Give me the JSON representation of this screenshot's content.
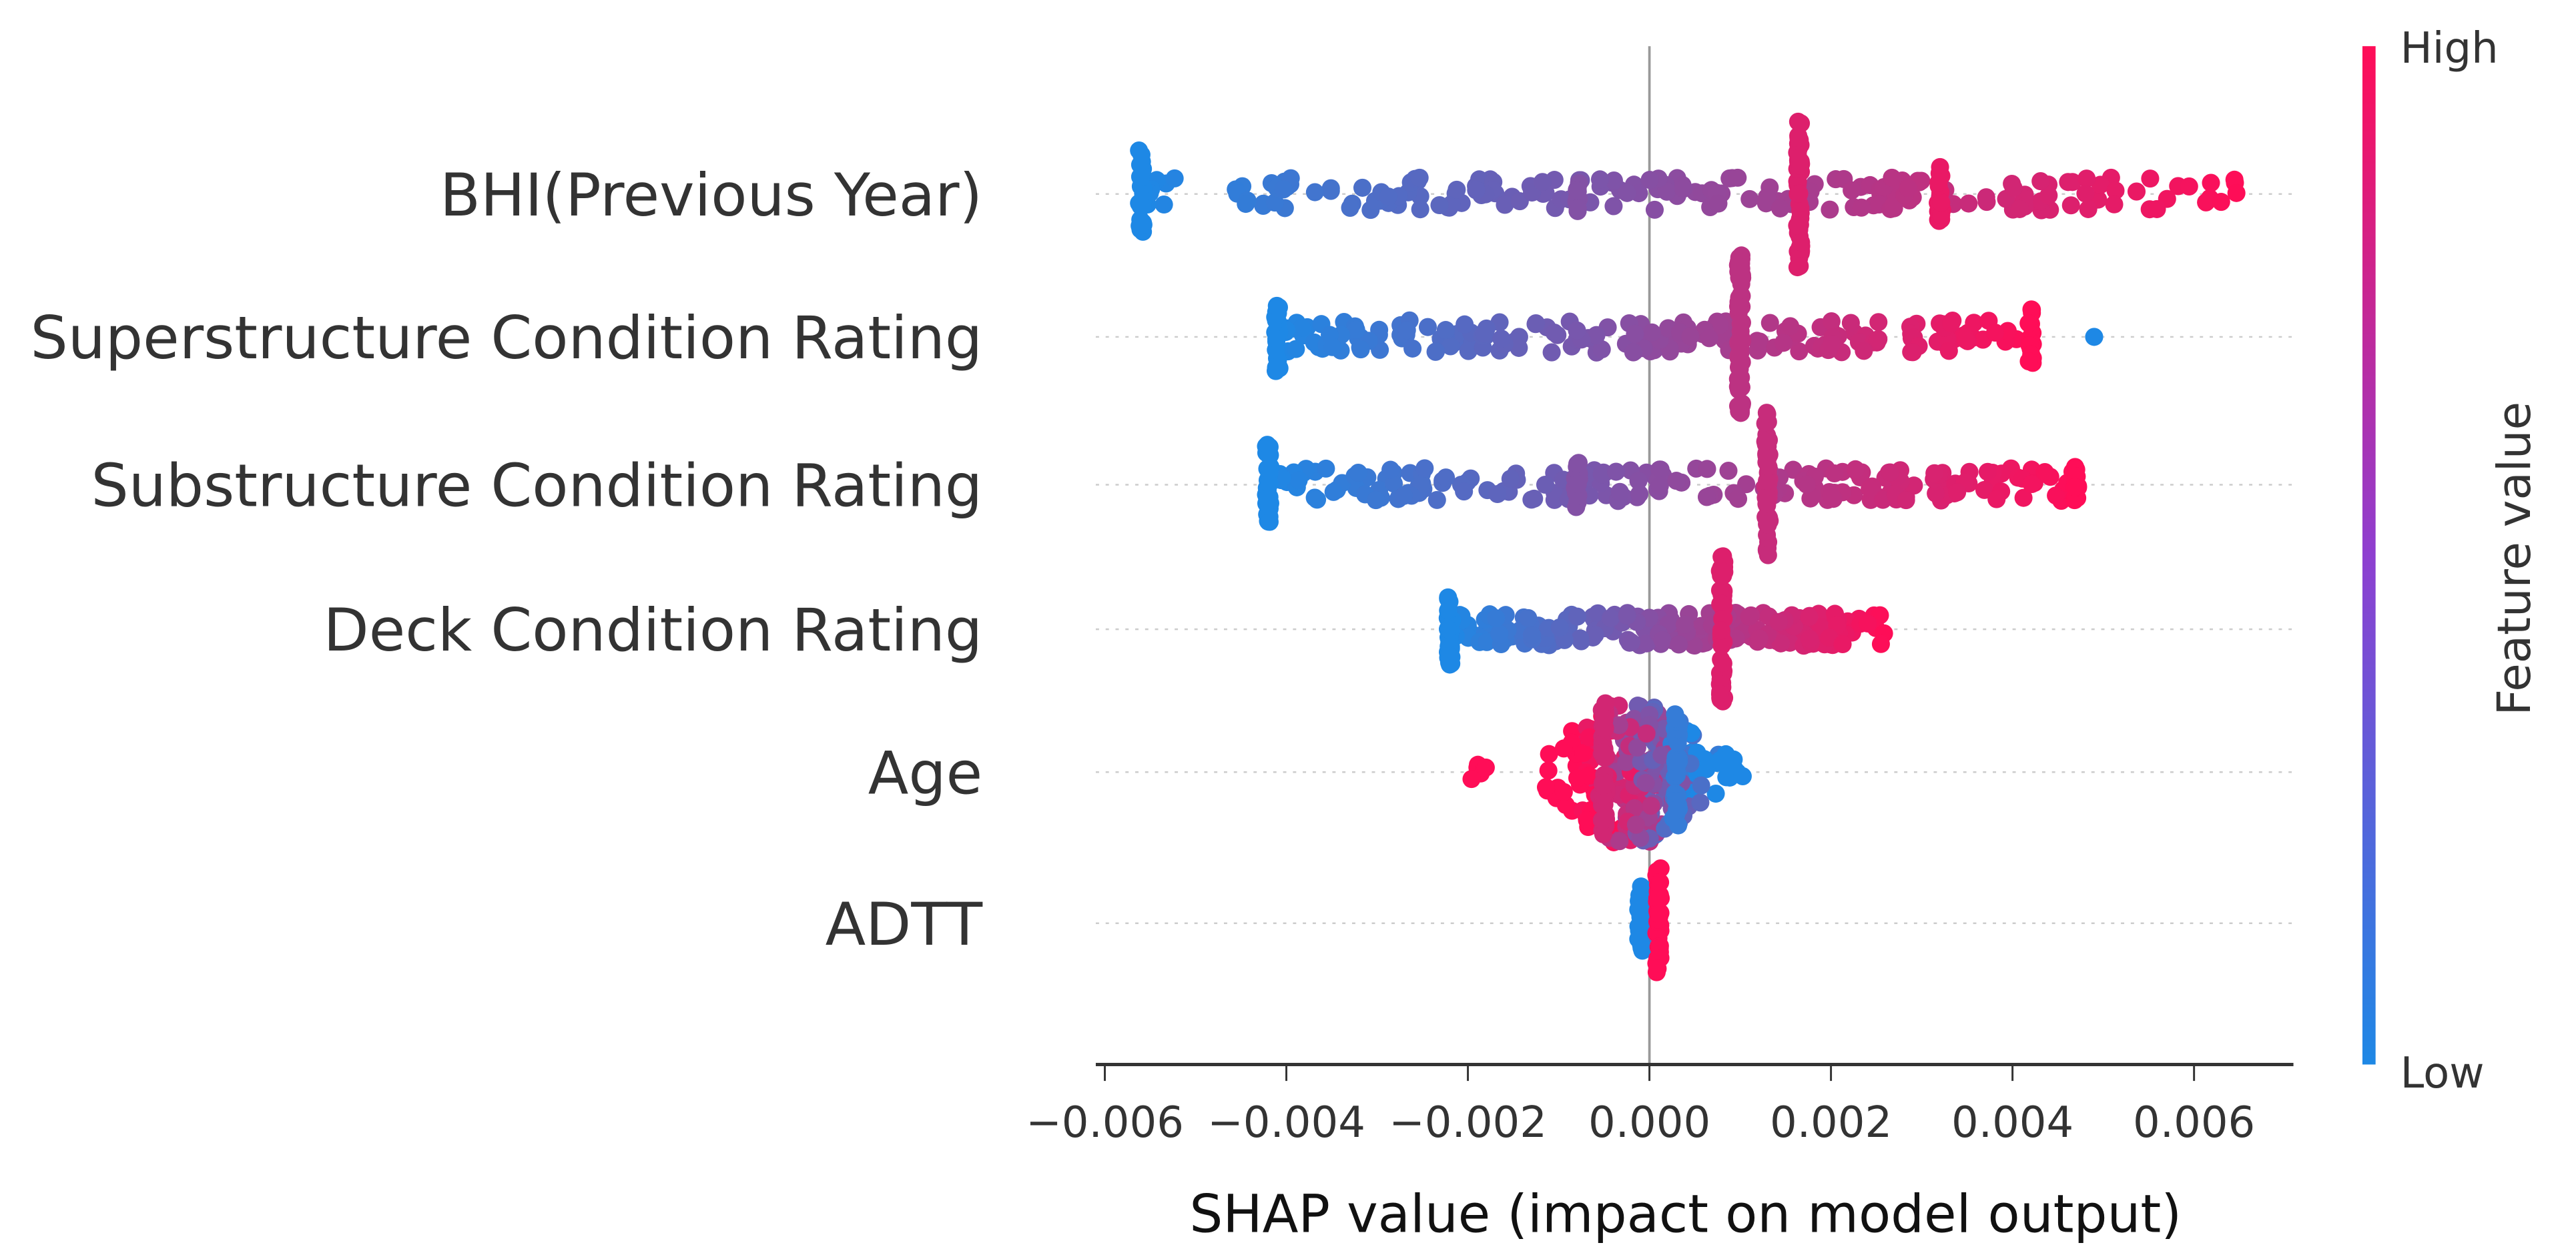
{
  "chart_data": {
    "type": "scatter",
    "subtype": "shap-beeswarm",
    "xlabel": "SHAP value (impact on model output)",
    "xlim": [
      -0.0062,
      0.0071
    ],
    "xticks": [
      -0.006,
      -0.004,
      -0.002,
      0.0,
      0.002,
      0.004,
      0.006
    ],
    "xtick_labels": [
      "−0.006",
      "−0.004",
      "−0.002",
      "0.000",
      "0.002",
      "0.004",
      "0.006"
    ],
    "grid": false,
    "colorbar": {
      "label": "Feature value",
      "high_label": "High",
      "low_label": "Low",
      "low_color": "#1e88e5",
      "high_color": "#ff0d57",
      "placement": "right"
    },
    "features": [
      {
        "name": "BHI(Previous Year)",
        "min": -0.0056,
        "max": 0.0065,
        "color_trend": "increasing",
        "spikes": [
          {
            "x": -0.0056,
            "height": 1.0,
            "color": 0.0
          },
          {
            "x": 0.00165,
            "height": 1.6,
            "color": 0.85
          },
          {
            "x": 0.0032,
            "height": 0.6,
            "color": 0.9
          },
          {
            "x": -0.0008,
            "height": 0.4,
            "color": 0.45
          }
        ]
      },
      {
        "name": "Superstructure Condition Rating",
        "min": -0.0041,
        "max": 0.0042,
        "color_trend": "increasing",
        "outliers": [
          {
            "x": 0.0049,
            "color": 0.0
          }
        ],
        "spikes": [
          {
            "x": -0.0041,
            "height": 0.8,
            "color": 0.0
          },
          {
            "x": 0.001,
            "height": 1.8,
            "color": 0.7
          },
          {
            "x": 0.0042,
            "height": 0.6,
            "color": 1.0
          }
        ]
      },
      {
        "name": "Substructure Condition Rating",
        "min": -0.0042,
        "max": 0.0047,
        "color_trend": "increasing",
        "spikes": [
          {
            "x": -0.0042,
            "height": 0.9,
            "color": 0.0
          },
          {
            "x": -0.0008,
            "height": 0.5,
            "color": 0.45
          },
          {
            "x": 0.0013,
            "height": 1.6,
            "color": 0.75
          },
          {
            "x": 0.0047,
            "height": 0.4,
            "color": 1.0
          }
        ]
      },
      {
        "name": "Deck Condition Rating",
        "min": -0.0022,
        "max": 0.0026,
        "color_trend": "increasing",
        "spikes": [
          {
            "x": -0.0022,
            "height": 0.8,
            "color": 0.0
          },
          {
            "x": 0.0008,
            "height": 1.6,
            "color": 0.85
          }
        ]
      },
      {
        "name": "Age",
        "min": -0.002,
        "max": 0.0013,
        "color_trend": "decreasing",
        "spikes": [
          {
            "x": -0.0005,
            "height": 1.5,
            "color": 0.8
          },
          {
            "x": 0.0003,
            "height": 1.3,
            "color": 0.1
          }
        ]
      },
      {
        "name": "ADTT",
        "min": -0.0001,
        "max": 0.0001,
        "color_trend": "increasing",
        "spikes": [
          {
            "x": -0.0001,
            "height": 0.8,
            "color": 0.0
          },
          {
            "x": 0.0001,
            "height": 1.2,
            "color": 1.0
          }
        ]
      }
    ]
  }
}
